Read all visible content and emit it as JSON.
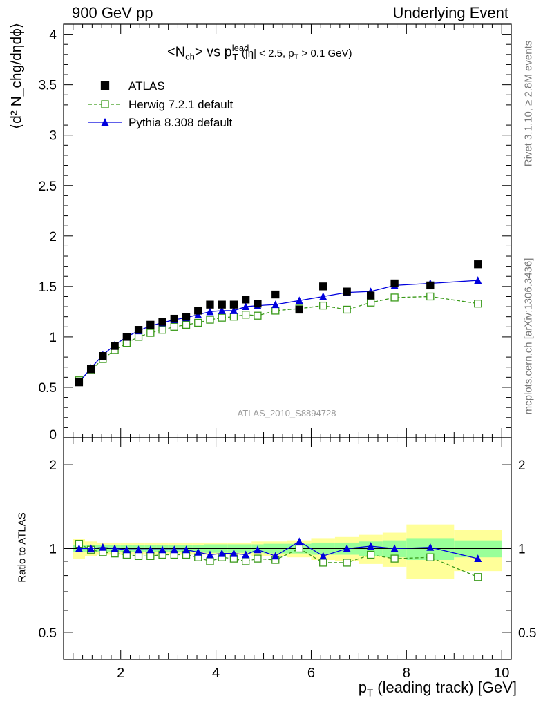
{
  "header": {
    "left": "900 GeV pp",
    "right": "Underlying Event"
  },
  "side_labels": {
    "rivet": "Rivet 3.1.10, ≥ 2.8M events",
    "mcplots": "mcplots.cern.ch [arXiv:1306.3436]"
  },
  "plot_title": {
    "main_a": "<N",
    "main_a_sub": "ch",
    "main_b": "> vs p",
    "main_b_sup": "lead",
    "main_b_sub": "T",
    "cut_a": "(|η| < 2.5, p",
    "cut_a_sub": "T",
    "cut_b": " > 0.1 GeV)"
  },
  "y_label_top": "⟨d² N_chg/dηdϕ⟩",
  "y_label_bottom": "Ratio to ATLAS",
  "x_label": {
    "main": "p",
    "sub": "T",
    "rest": " (leading track) [GeV]"
  },
  "watermark": "ATLAS_2010_S8894728",
  "colors": {
    "atlas": "#000000",
    "herwig": "#3a9a1a",
    "pythia": "#0000dd",
    "band_inner": "#99ff99",
    "band_outer": "#ffff99"
  },
  "chart_data": [
    {
      "type": "scatter",
      "panel": "main",
      "ylim": [
        0,
        4.1
      ],
      "xlim": [
        0.8,
        10.2
      ],
      "y_ticks": [
        "0",
        "0.5",
        "1",
        "1.5",
        "2",
        "2.5",
        "3",
        "3.5",
        "4"
      ],
      "x_ticks": [
        "2",
        "4",
        "6",
        "8",
        "10"
      ],
      "legend_position": "top-left",
      "x": [
        1.125,
        1.375,
        1.625,
        1.875,
        2.125,
        2.375,
        2.625,
        2.875,
        3.125,
        3.375,
        3.625,
        3.875,
        4.125,
        4.375,
        4.625,
        4.875,
        5.25,
        5.75,
        6.25,
        6.75,
        7.25,
        7.75,
        8.5,
        9.5
      ],
      "series": [
        {
          "name": "ATLAS",
          "style": "marker-square",
          "values": [
            0.55,
            0.68,
            0.81,
            0.91,
            1.0,
            1.07,
            1.12,
            1.15,
            1.18,
            1.2,
            1.26,
            1.32,
            1.32,
            1.32,
            1.37,
            1.33,
            1.42,
            1.27,
            1.5,
            1.45,
            1.41,
            1.53,
            1.51,
            1.72
          ]
        },
        {
          "name": "Herwig 7.2.1 default",
          "style": "dashed-open-square",
          "values": [
            0.57,
            0.67,
            0.78,
            0.87,
            0.94,
            1.0,
            1.04,
            1.07,
            1.1,
            1.12,
            1.14,
            1.17,
            1.19,
            1.2,
            1.22,
            1.21,
            1.26,
            1.28,
            1.31,
            1.27,
            1.34,
            1.39,
            1.4,
            1.33
          ]
        },
        {
          "name": "Pythia 8.308 default",
          "style": "solid-triangle",
          "values": [
            0.55,
            0.69,
            0.82,
            0.92,
            1.0,
            1.06,
            1.11,
            1.14,
            1.17,
            1.19,
            1.22,
            1.25,
            1.26,
            1.26,
            1.3,
            1.31,
            1.32,
            1.36,
            1.4,
            1.44,
            1.45,
            1.51,
            1.53,
            1.56
          ]
        }
      ]
    },
    {
      "type": "line",
      "panel": "ratio",
      "ylabel": "Ratio to ATLAS",
      "ylim": [
        0.4,
        2.5
      ],
      "y_scale": "log",
      "y_ticks": [
        "0.5",
        "1",
        "2"
      ],
      "x": [
        1.125,
        1.375,
        1.625,
        1.875,
        2.125,
        2.375,
        2.625,
        2.875,
        3.125,
        3.375,
        3.625,
        3.875,
        4.125,
        4.375,
        4.625,
        4.875,
        5.25,
        5.75,
        6.25,
        6.75,
        7.25,
        7.75,
        8.5,
        9.5
      ],
      "series": [
        {
          "name": "Herwig 7.2.1 default",
          "values": [
            1.04,
            0.99,
            0.97,
            0.96,
            0.95,
            0.94,
            0.94,
            0.95,
            0.95,
            0.95,
            0.93,
            0.9,
            0.93,
            0.92,
            0.9,
            0.92,
            0.91,
            1.0,
            0.89,
            0.89,
            0.95,
            0.92,
            0.93,
            0.79
          ]
        },
        {
          "name": "Pythia 8.308 default",
          "values": [
            1.0,
            1.0,
            1.01,
            1.0,
            0.99,
            0.99,
            0.99,
            0.99,
            0.99,
            0.99,
            0.97,
            0.95,
            0.96,
            0.96,
            0.95,
            0.99,
            0.94,
            1.06,
            0.94,
            1.0,
            1.02,
            1.0,
            1.01,
            0.92
          ]
        }
      ],
      "uncertainty_bands": {
        "x_edges": [
          1.0,
          1.25,
          1.5,
          1.75,
          2.0,
          2.25,
          2.5,
          2.75,
          3.0,
          3.25,
          3.5,
          3.75,
          4.0,
          4.25,
          4.5,
          4.75,
          5.0,
          5.5,
          6.0,
          6.5,
          7.0,
          7.5,
          8.0,
          9.0,
          10.0
        ],
        "inner_half_width": [
          0.03,
          0.03,
          0.03,
          0.03,
          0.03,
          0.03,
          0.03,
          0.03,
          0.03,
          0.03,
          0.03,
          0.035,
          0.035,
          0.035,
          0.035,
          0.035,
          0.04,
          0.04,
          0.05,
          0.05,
          0.06,
          0.07,
          0.09,
          0.07
        ],
        "outer_half_width": [
          0.08,
          0.06,
          0.05,
          0.05,
          0.05,
          0.05,
          0.05,
          0.05,
          0.05,
          0.05,
          0.05,
          0.05,
          0.05,
          0.05,
          0.05,
          0.06,
          0.06,
          0.07,
          0.09,
          0.1,
          0.12,
          0.14,
          0.22,
          0.17
        ]
      }
    }
  ]
}
